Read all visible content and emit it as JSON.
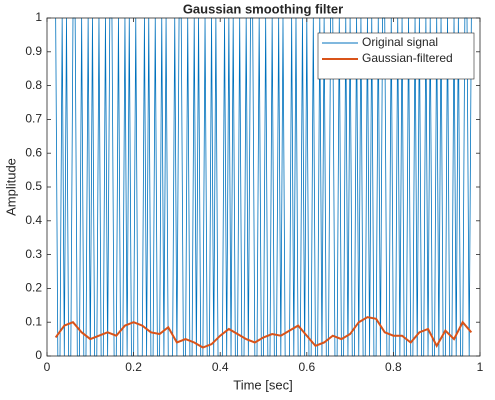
{
  "chart_data": {
    "type": "line",
    "title": "Gaussian smoothing filter",
    "xlabel": "Time [sec]",
    "ylabel": "Amplitude",
    "xlim": [
      0,
      1
    ],
    "ylim": [
      0,
      1
    ],
    "xticks": [
      0,
      0.2,
      0.4,
      0.6,
      0.8,
      1
    ],
    "yticks": [
      0,
      0.1,
      0.2,
      0.3,
      0.4,
      0.5,
      0.6,
      0.7,
      0.8,
      0.9,
      1
    ],
    "legend": "upper right",
    "series": [
      {
        "name": "Original signal",
        "color": "#0072BD",
        "x": [
          0.02,
          0.025,
          0.03,
          0.035,
          0.04,
          0.045,
          0.05,
          0.055,
          0.06,
          0.065,
          0.07,
          0.075,
          0.08,
          0.085,
          0.09,
          0.095,
          0.1,
          0.105,
          0.11,
          0.115,
          0.12,
          0.125,
          0.13,
          0.135,
          0.14,
          0.145,
          0.15,
          0.155,
          0.16,
          0.165,
          0.17,
          0.175,
          0.18,
          0.185,
          0.19,
          0.195,
          0.2,
          0.205,
          0.21,
          0.215,
          0.22,
          0.225,
          0.23,
          0.235,
          0.24,
          0.245,
          0.25,
          0.255,
          0.26,
          0.265,
          0.27,
          0.275,
          0.28,
          0.285,
          0.29,
          0.295,
          0.3,
          0.305,
          0.31,
          0.315,
          0.32,
          0.325,
          0.33,
          0.335,
          0.34,
          0.345,
          0.35,
          0.355,
          0.36,
          0.365,
          0.37,
          0.375,
          0.38,
          0.385,
          0.39,
          0.395,
          0.4,
          0.405,
          0.41,
          0.415,
          0.42,
          0.425,
          0.43,
          0.435,
          0.44,
          0.445,
          0.45,
          0.455,
          0.46,
          0.465,
          0.47,
          0.475,
          0.48,
          0.485,
          0.49,
          0.495,
          0.5,
          0.505,
          0.51,
          0.515,
          0.52,
          0.525,
          0.53,
          0.535,
          0.54,
          0.545,
          0.55,
          0.555,
          0.56,
          0.565,
          0.57,
          0.575,
          0.58,
          0.585,
          0.59,
          0.595,
          0.6,
          0.605,
          0.61,
          0.615,
          0.62,
          0.625,
          0.63,
          0.635,
          0.64,
          0.645,
          0.65,
          0.655,
          0.66,
          0.665,
          0.67,
          0.675,
          0.68,
          0.685,
          0.69,
          0.695,
          0.7,
          0.705,
          0.71,
          0.715,
          0.72,
          0.725,
          0.73,
          0.735,
          0.74,
          0.745,
          0.75,
          0.755,
          0.76,
          0.765,
          0.77,
          0.775,
          0.78,
          0.785,
          0.79,
          0.795,
          0.8,
          0.805,
          0.81,
          0.815,
          0.82,
          0.825,
          0.83,
          0.835,
          0.84,
          0.845,
          0.85,
          0.855,
          0.86,
          0.865,
          0.87,
          0.875,
          0.88,
          0.885,
          0.89,
          0.895,
          0.9,
          0.905,
          0.91,
          0.915,
          0.92,
          0.925,
          0.93,
          0.935,
          0.94,
          0.945,
          0.95,
          0.955,
          0.96,
          0.965,
          0.97,
          0.975,
          0.98
        ],
        "values": [
          1,
          0,
          0,
          1,
          0,
          1,
          0,
          0,
          1,
          1,
          0,
          0,
          1,
          0,
          0,
          1,
          0,
          1,
          0,
          0,
          1,
          0,
          0,
          1,
          0,
          1,
          1,
          0,
          0,
          1,
          0,
          0,
          1,
          0,
          1,
          0,
          0,
          1,
          0,
          0,
          0,
          1,
          0,
          1,
          0,
          0,
          1,
          0,
          0,
          1,
          0,
          1,
          0,
          0,
          0,
          1,
          0,
          1,
          1,
          0,
          0,
          1,
          0,
          0,
          1,
          0,
          1,
          0,
          0,
          1,
          0,
          0,
          1,
          0,
          1,
          0,
          0,
          0,
          1,
          0,
          1,
          0,
          1,
          0,
          0,
          1,
          0,
          0,
          1,
          0,
          1,
          1,
          0,
          0,
          1,
          0,
          0,
          1,
          0,
          0,
          1,
          0,
          0,
          1,
          0,
          1,
          0,
          0,
          0,
          1,
          0,
          1,
          0,
          0,
          1,
          0,
          1,
          0,
          0,
          1,
          0,
          0,
          1,
          0,
          1,
          0,
          0,
          1,
          1,
          0,
          0,
          1,
          0,
          0,
          1,
          0,
          1,
          0,
          0,
          1,
          0,
          1,
          0,
          0,
          1,
          0,
          1,
          0,
          0,
          1,
          0,
          1,
          1,
          0,
          0,
          1,
          0,
          0,
          1,
          0,
          1,
          0,
          0,
          1,
          0,
          0,
          1,
          0,
          1,
          0,
          0,
          1,
          0,
          1,
          0,
          0,
          1,
          0,
          1,
          0,
          0,
          1,
          0,
          0,
          1,
          0,
          1,
          0,
          0,
          1,
          1,
          0,
          1
        ]
      },
      {
        "name": "Gaussian-filtered",
        "color": "#D95319",
        "x": [
          0.02,
          0.04,
          0.06,
          0.08,
          0.1,
          0.12,
          0.14,
          0.16,
          0.18,
          0.2,
          0.22,
          0.24,
          0.26,
          0.28,
          0.3,
          0.32,
          0.34,
          0.36,
          0.38,
          0.4,
          0.42,
          0.44,
          0.46,
          0.48,
          0.5,
          0.52,
          0.54,
          0.56,
          0.58,
          0.6,
          0.62,
          0.64,
          0.66,
          0.68,
          0.7,
          0.72,
          0.74,
          0.76,
          0.78,
          0.8,
          0.82,
          0.84,
          0.86,
          0.88,
          0.9,
          0.92,
          0.94,
          0.96,
          0.98
        ],
        "values": [
          0.055,
          0.09,
          0.1,
          0.07,
          0.05,
          0.06,
          0.07,
          0.06,
          0.09,
          0.1,
          0.09,
          0.07,
          0.065,
          0.085,
          0.04,
          0.05,
          0.04,
          0.025,
          0.035,
          0.06,
          0.08,
          0.065,
          0.05,
          0.04,
          0.055,
          0.065,
          0.06,
          0.075,
          0.09,
          0.06,
          0.03,
          0.04,
          0.06,
          0.05,
          0.065,
          0.1,
          0.115,
          0.11,
          0.07,
          0.06,
          0.06,
          0.04,
          0.07,
          0.08,
          0.03,
          0.075,
          0.05,
          0.1,
          0.07
        ]
      }
    ]
  }
}
